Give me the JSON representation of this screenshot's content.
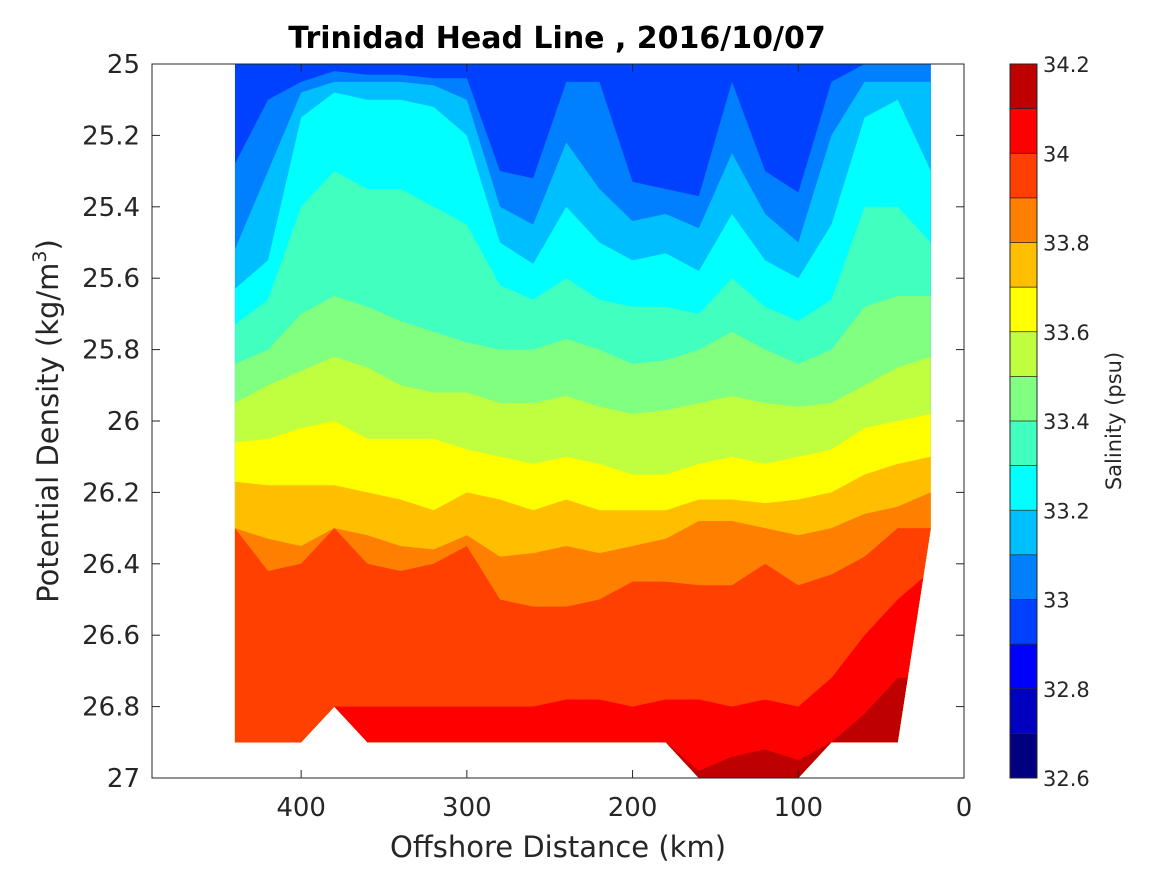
{
  "chart_data": {
    "type": "heatmap",
    "subtype": "filled-contour",
    "title": "Trinidad Head Line , 2016/10/07",
    "xlabel": "Offshore Distance (km)",
    "ylabel": "Potential Density (kg/m",
    "ylabel_sup": "3",
    "ylabel_close": ")",
    "xlim": [
      490,
      0
    ],
    "x_reversed": true,
    "ylim": [
      25,
      27
    ],
    "y_reversed": true,
    "x_ticks": [
      400,
      300,
      200,
      100,
      0
    ],
    "y_ticks": [
      "25",
      "25.2",
      "25.4",
      "25.6",
      "25.8",
      "26",
      "26.2",
      "26.4",
      "26.6",
      "26.8",
      "27"
    ],
    "colorbar": {
      "label": "Salinity (psu)",
      "min": 32.6,
      "max": 34.2,
      "step": 0.1,
      "tick_labels": [
        "32.6",
        "32.8",
        "33",
        "33.2",
        "33.4",
        "33.6",
        "33.8",
        "34",
        "34.2"
      ],
      "colormap": "jet",
      "level_colors": [
        "#000080",
        "#0000BF",
        "#0000FF",
        "#0040FF",
        "#0080FF",
        "#00BFFF",
        "#00FFFF",
        "#40FFBF",
        "#80FF80",
        "#BFFF40",
        "#FFFF00",
        "#FFBF00",
        "#FF8000",
        "#FF4000",
        "#FF0000",
        "#BF0000"
      ]
    },
    "distances": [
      440,
      420,
      400,
      380,
      360,
      340,
      320,
      300,
      280,
      260,
      240,
      220,
      200,
      180,
      160,
      140,
      120,
      100,
      80,
      60,
      40,
      20
    ],
    "bottom_density": [
      26.9,
      26.9,
      26.9,
      26.8,
      26.9,
      26.9,
      26.9,
      26.9,
      26.9,
      26.9,
      26.9,
      26.9,
      26.9,
      26.9,
      27,
      27,
      27,
      27,
      26.9,
      26.9,
      26.9,
      26.3
    ],
    "contours": [
      {
        "level": 33.0,
        "depth": [
          25.28,
          25.1,
          25.05,
          25.02,
          25.03,
          25.03,
          25.04,
          25.04,
          25.3,
          25.32,
          25.05,
          25.05,
          25.33,
          25.35,
          25.37,
          25.05,
          25.3,
          25.36,
          25.05,
          25.0,
          25.0,
          25.0
        ]
      },
      {
        "level": 33.1,
        "depth": [
          25.52,
          25.3,
          25.08,
          25.05,
          25.05,
          25.05,
          25.06,
          25.1,
          25.4,
          25.45,
          25.22,
          25.35,
          25.44,
          25.42,
          25.46,
          25.25,
          25.42,
          25.5,
          25.2,
          25.05,
          25.05,
          25.05
        ]
      },
      {
        "level": 33.2,
        "depth": [
          25.63,
          25.55,
          25.15,
          25.08,
          25.1,
          25.1,
          25.12,
          25.2,
          25.5,
          25.56,
          25.4,
          25.5,
          25.55,
          25.53,
          25.58,
          25.42,
          25.55,
          25.6,
          25.45,
          25.15,
          25.1,
          25.3
        ]
      },
      {
        "level": 33.3,
        "depth": [
          25.73,
          25.66,
          25.4,
          25.3,
          25.35,
          25.35,
          25.4,
          25.45,
          25.62,
          25.66,
          25.6,
          25.66,
          25.68,
          25.68,
          25.7,
          25.6,
          25.68,
          25.72,
          25.66,
          25.4,
          25.4,
          25.5
        ]
      },
      {
        "level": 33.4,
        "depth": [
          25.84,
          25.8,
          25.7,
          25.65,
          25.68,
          25.72,
          25.75,
          25.78,
          25.8,
          25.8,
          25.77,
          25.8,
          25.84,
          25.83,
          25.8,
          25.75,
          25.8,
          25.84,
          25.8,
          25.68,
          25.65,
          25.65
        ]
      },
      {
        "level": 33.5,
        "depth": [
          25.95,
          25.9,
          25.86,
          25.82,
          25.85,
          25.9,
          25.92,
          25.92,
          25.95,
          25.95,
          25.93,
          25.96,
          25.98,
          25.97,
          25.95,
          25.93,
          25.95,
          25.96,
          25.95,
          25.9,
          25.85,
          25.82
        ]
      },
      {
        "level": 33.6,
        "depth": [
          26.06,
          26.05,
          26.02,
          26.0,
          26.05,
          26.05,
          26.05,
          26.08,
          26.1,
          26.12,
          26.1,
          26.12,
          26.15,
          26.15,
          26.12,
          26.1,
          26.12,
          26.1,
          26.08,
          26.02,
          26.0,
          25.98
        ]
      },
      {
        "level": 33.7,
        "depth": [
          26.17,
          26.18,
          26.18,
          26.18,
          26.2,
          26.22,
          26.25,
          26.2,
          26.22,
          26.25,
          26.22,
          26.25,
          26.25,
          26.25,
          26.22,
          26.22,
          26.23,
          26.22,
          26.2,
          26.15,
          26.12,
          26.1
        ]
      },
      {
        "level": 33.8,
        "depth": [
          26.3,
          26.33,
          26.35,
          26.3,
          26.32,
          26.35,
          26.36,
          26.32,
          26.38,
          26.37,
          26.35,
          26.37,
          26.35,
          26.33,
          26.28,
          26.28,
          26.3,
          26.32,
          26.3,
          26.26,
          26.24,
          26.2
        ]
      },
      {
        "level": 33.9,
        "depth": [
          26.3,
          26.42,
          26.4,
          26.3,
          26.4,
          26.42,
          26.4,
          26.35,
          26.5,
          26.52,
          26.52,
          26.5,
          26.45,
          26.45,
          26.46,
          26.46,
          26.4,
          26.46,
          26.43,
          26.38,
          26.3,
          26.3
        ]
      },
      {
        "level": 34.0,
        "depth": [
          26.9,
          26.9,
          26.9,
          26.8,
          26.8,
          26.8,
          26.8,
          26.8,
          26.8,
          26.8,
          26.78,
          26.78,
          26.8,
          26.78,
          26.78,
          26.8,
          26.78,
          26.8,
          26.72,
          26.6,
          26.5,
          26.42
        ]
      },
      {
        "level": 34.1,
        "depth": [
          26.9,
          26.9,
          26.9,
          26.8,
          26.9,
          26.9,
          26.9,
          26.9,
          26.9,
          26.9,
          26.9,
          26.9,
          26.9,
          26.9,
          26.98,
          26.94,
          26.92,
          26.95,
          26.9,
          26.82,
          26.72,
          26.72
        ]
      }
    ]
  }
}
